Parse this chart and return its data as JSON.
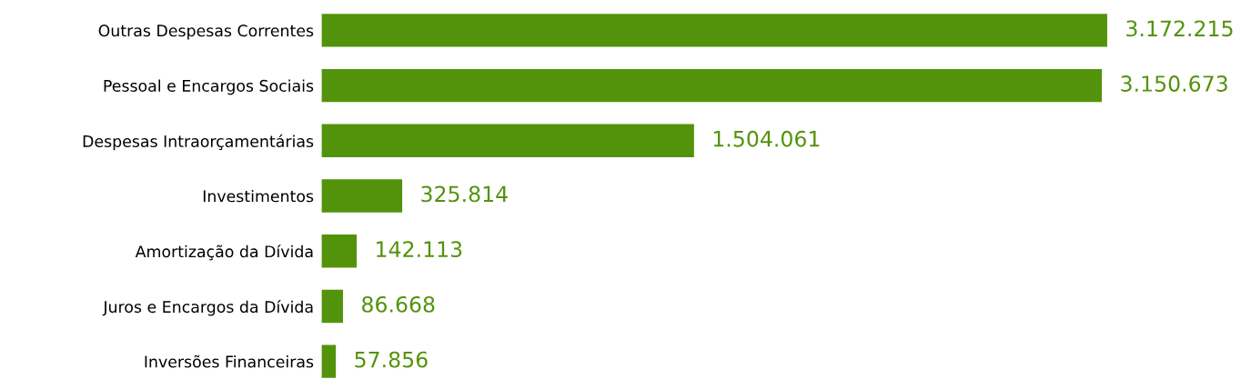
{
  "chart_data": {
    "type": "bar",
    "orientation": "horizontal",
    "categories": [
      "Outras Despesas Correntes",
      "Pessoal e Encargos Sociais",
      "Despesas Intraorçamentárias",
      "Investimentos",
      "Amortização da Dívida",
      "Juros e Encargos da Dívida",
      "Inversões Financeiras"
    ],
    "values": [
      3172215,
      3150673,
      1504061,
      325814,
      142113,
      86668,
      57856
    ],
    "value_labels": [
      "3.172.215",
      "3.150.673",
      "1.504.061",
      "325.814",
      "142.113",
      "86.668",
      "57.856"
    ],
    "color": "#53930c"
  }
}
